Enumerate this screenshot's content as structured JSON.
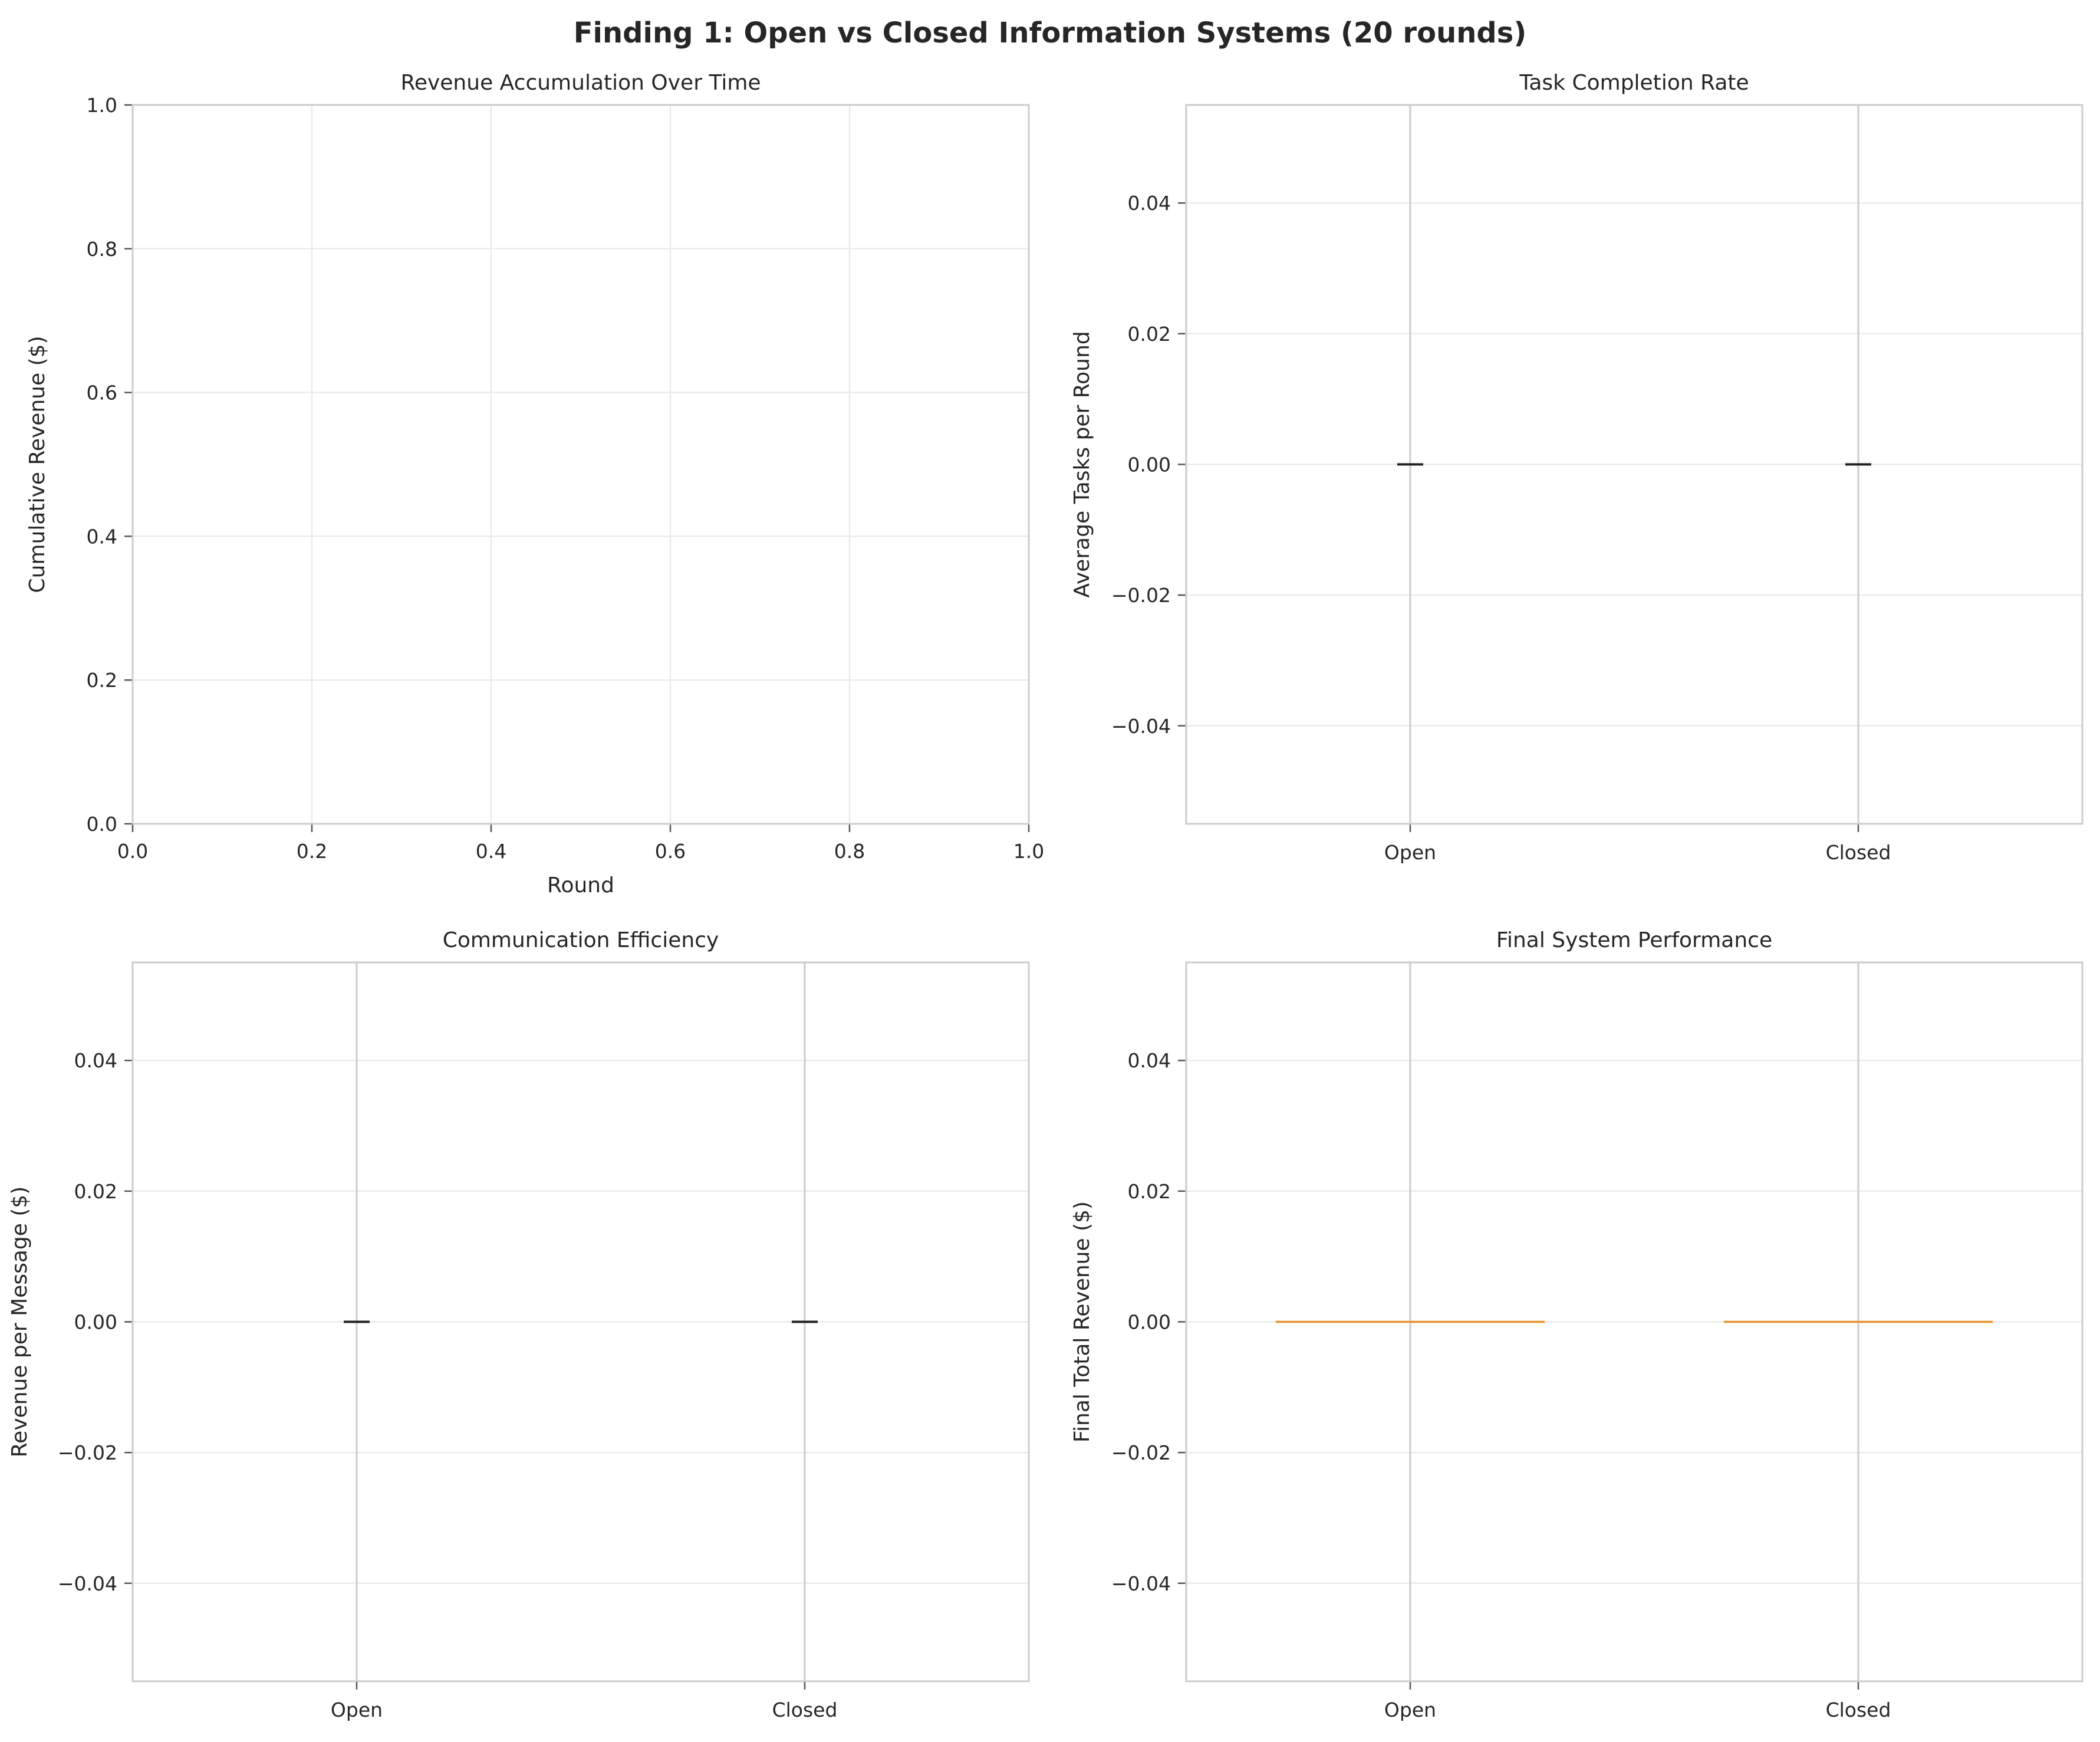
{
  "figure": {
    "title": "Finding 1: Open vs Closed Information Systems (20 rounds)"
  },
  "chart_data": [
    {
      "type": "line",
      "title": "Revenue Accumulation Over Time",
      "xlabel": "Round",
      "ylabel": "Cumulative Revenue ($)",
      "xlim": [
        0,
        1
      ],
      "ylim": [
        0,
        1
      ],
      "xticks": [
        "0.0",
        "0.2",
        "0.4",
        "0.6",
        "0.8",
        "1.0"
      ],
      "yticks": [
        "0.0",
        "0.2",
        "0.4",
        "0.6",
        "0.8",
        "1.0"
      ],
      "grid": true,
      "series": []
    },
    {
      "type": "bar",
      "title": "Task Completion Rate",
      "xlabel": "",
      "ylabel": "Average Tasks per Round",
      "categories": [
        "Open",
        "Closed"
      ],
      "values": [
        0,
        0
      ],
      "ylim": [
        -0.055,
        0.055
      ],
      "yticks": [
        "−0.04",
        "−0.02",
        "0.00",
        "0.02",
        "0.04"
      ],
      "grid": true,
      "bar_color": "#222222"
    },
    {
      "type": "bar",
      "title": "Communication Efficiency",
      "xlabel": "",
      "ylabel": "Revenue per Message ($)",
      "categories": [
        "Open",
        "Closed"
      ],
      "values": [
        0,
        0
      ],
      "ylim": [
        -0.055,
        0.055
      ],
      "yticks": [
        "−0.04",
        "−0.02",
        "0.00",
        "0.02",
        "0.04"
      ],
      "grid": true,
      "bar_color": "#222222"
    },
    {
      "type": "box",
      "title": "Final System Performance",
      "xlabel": "",
      "ylabel": "Final Total Revenue ($)",
      "categories": [
        "Open",
        "Closed"
      ],
      "values": [
        0,
        0
      ],
      "ylim": [
        -0.055,
        0.055
      ],
      "yticks": [
        "−0.04",
        "−0.02",
        "0.00",
        "0.02",
        "0.04"
      ],
      "grid": true,
      "median_color": "#e8912d"
    }
  ]
}
